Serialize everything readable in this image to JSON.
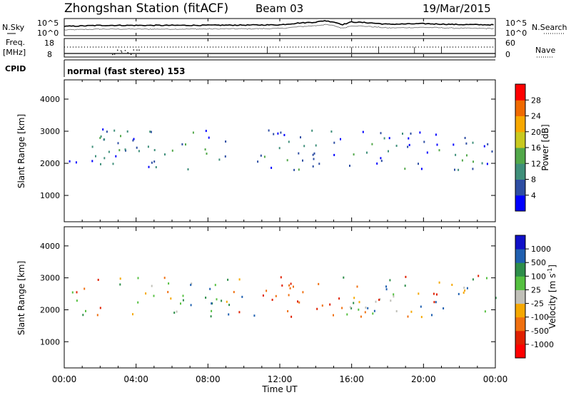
{
  "header": {
    "station": "Zhongshan Station (fitACF)",
    "beam": "Beam 03",
    "date": "19/Mar/2015"
  },
  "left_labels": {
    "nsky": "N.Sky",
    "freq": "Freq.",
    "freq_unit": "[MHz]",
    "cpid": "CPID"
  },
  "right_labels": {
    "nsearch": "N.Search",
    "nave": "Nave"
  },
  "cpid_text": "normal (fast stereo) 153",
  "chart_data": [
    {
      "type": "line",
      "panel": "noise",
      "ylabels_left": [
        "10^5",
        "10^0"
      ],
      "ylabels_right": [
        "10^5",
        "10^0"
      ],
      "series": [
        {
          "name": "N.Sky",
          "style": "solid"
        },
        {
          "name": "N.Search",
          "style": "dotted"
        }
      ],
      "x": [
        0,
        2,
        4,
        6,
        8,
        10,
        12,
        13,
        14,
        14.5,
        15,
        15.5,
        16,
        17,
        18,
        20,
        22,
        24
      ],
      "sky": [
        0.55,
        0.62,
        0.62,
        0.62,
        0.63,
        0.64,
        0.66,
        0.78,
        0.85,
        0.95,
        0.86,
        0.68,
        0.86,
        0.8,
        0.7,
        0.74,
        0.68,
        0.66
      ],
      "search": [
        0.3,
        0.36,
        0.36,
        0.36,
        0.37,
        0.38,
        0.4,
        0.52,
        0.6,
        0.68,
        0.6,
        0.42,
        0.6,
        0.54,
        0.44,
        0.48,
        0.42,
        0.4
      ]
    },
    {
      "type": "line",
      "panel": "frequency",
      "ylabels_left": [
        "18",
        "8"
      ],
      "ylabels_right": [
        "60",
        "0"
      ]
    },
    {
      "type": "heatmap",
      "panel": "power",
      "ylabel": "Slant Range [km]",
      "yticks": [
        "1000",
        "2000",
        "3000",
        "4000"
      ],
      "ylim": [
        180,
        4600
      ],
      "colorbar_label": "Power [dB]",
      "colorbar_ticks": [
        "4",
        "8",
        "12",
        "16",
        "20",
        "24",
        "28"
      ],
      "colors": [
        "#0000ff",
        "#2e4ea3",
        "#3f8f7a",
        "#52a84a",
        "#c9c91f",
        "#f7a800",
        "#f06a00",
        "#ff0000"
      ]
    },
    {
      "type": "heatmap",
      "panel": "velocity",
      "ylabel": "Slant Range [km]",
      "yticks": [
        "1000",
        "2000",
        "3000",
        "4000"
      ],
      "ylim": [
        180,
        4600
      ],
      "colorbar_label": "Velocity",
      "colorbar_unit": "[m s",
      "colorbar_unit_exp": "-1",
      "colorbar_unit_end": "]",
      "colorbar_ticks": [
        "1000",
        "500",
        "100",
        "25",
        "-25",
        "-100",
        "-500",
        "-1000"
      ],
      "colors": [
        "#1010c8",
        "#2060b0",
        "#2e8e4a",
        "#55c040",
        "#c0c0b8",
        "#f5a800",
        "#f07010",
        "#e02000",
        "#ff0000"
      ]
    }
  ],
  "xaxis": {
    "ticks": [
      "00:00",
      "04:00",
      "08:00",
      "12:00",
      "16:00",
      "20:00",
      "00:00"
    ],
    "label": "Time UT"
  }
}
